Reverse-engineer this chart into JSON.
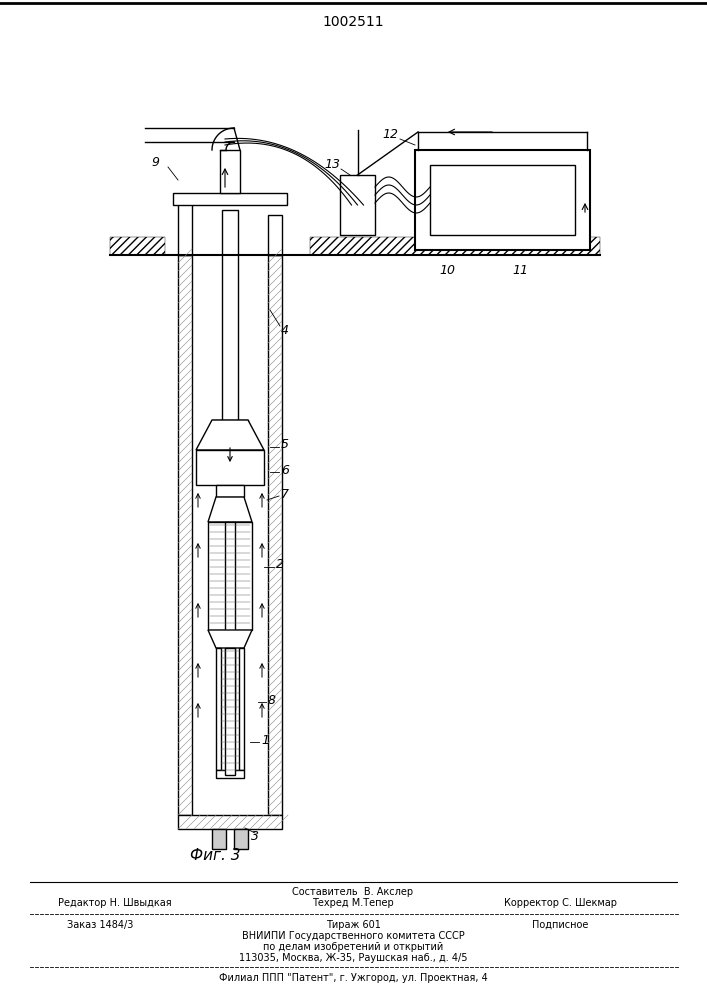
{
  "patent_number": "1002511",
  "fig_caption": "Фиг. 3",
  "footer_line1_left": "Редактор Н. Швыдкая",
  "footer_line1_center_top": "Составитель  В. Акслер",
  "footer_line1_center_bot": "Техред М.Тепер",
  "footer_line1_right": "Корректор С. Шекмар",
  "footer_line2_col1": "Заказ 1484/3",
  "footer_line2_col2": "Тираж 601",
  "footer_line2_col3": "Подписное",
  "footer_line3": "ВНИИПИ Государственного комитета СССР",
  "footer_line4": "по делам изобретений и открытий",
  "footer_line5": "113035, Москва, Ж-35, Раушская наб., д. 4/5",
  "footer_line6": "Филиал ППП \"Патент\", г. Ужгород, ул. Проектная, 4",
  "bg_color": "#ffffff",
  "line_color": "#000000"
}
